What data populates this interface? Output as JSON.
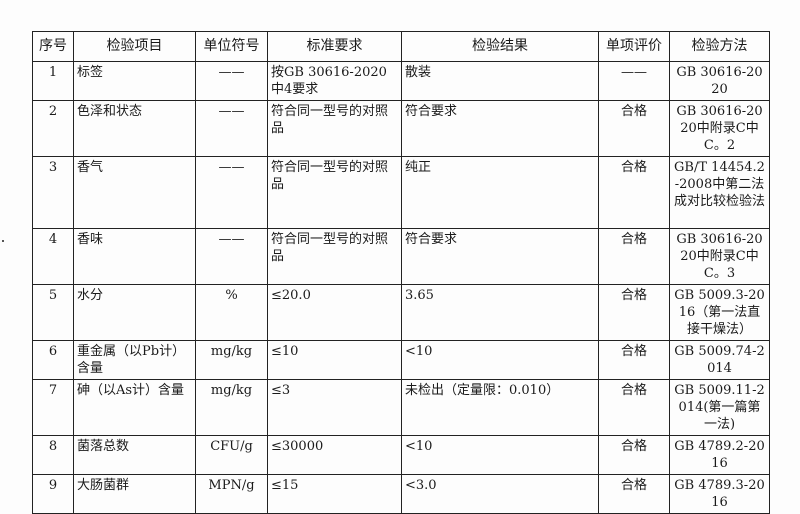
{
  "headers": [
    "序号",
    "检验项目",
    "单位符号",
    "标准要求",
    "检验结果",
    "单项评价",
    "检验方法"
  ],
  "rows": [
    {
      "no": "1",
      "item": "标签",
      "unit": "——",
      "requirement": "按GB 30616-2020中4要求",
      "result": "散装",
      "evaluation": "——",
      "method": "GB 30616-2020"
    },
    {
      "no": "2",
      "item": "色泽和状态",
      "unit": "——",
      "requirement": "符合同一型号的对照品",
      "result": "符合要求",
      "evaluation": "合格",
      "method": "GB 30616-2020中附录C中C。2"
    },
    {
      "no": "3",
      "item": "香气",
      "unit": "——",
      "requirement": "符合同一型号的对照品",
      "result": "纯正",
      "evaluation": "合格",
      "method": "GB/T 14454.2-2008中第二法成对比较检验法"
    },
    {
      "no": "4",
      "item": "香味",
      "unit": "——",
      "requirement": "符合同一型号的对照品",
      "result": "符合要求",
      "evaluation": "合格",
      "method": "GB 30616-2020中附录C中C。3"
    },
    {
      "no": "5",
      "item": "水分",
      "unit": "%",
      "requirement": "≤20.0",
      "result": "3.65",
      "evaluation": "合格",
      "method": "GB 5009.3-2016（第一法直接干燥法）"
    },
    {
      "no": "6",
      "item": "重金属（以Pb计）含量",
      "unit": "mg/kg",
      "requirement": "≤10",
      "result": "<10",
      "evaluation": "合格",
      "method": "GB 5009.74-2014"
    },
    {
      "no": "7",
      "item": "砷（以As计）含量",
      "unit": "mg/kg",
      "requirement": "≤3",
      "result": "未检出（定量限：0.010）",
      "evaluation": "合格",
      "method": "GB 5009.11-2014(第一篇第一法)"
    },
    {
      "no": "8",
      "item": "菌落总数",
      "unit": "CFU/g",
      "requirement": "≤30000",
      "result": "<10",
      "evaluation": "合格",
      "method": "GB 4789.2-2016"
    },
    {
      "no": "9",
      "item": "大肠菌群",
      "unit": "MPN/g",
      "requirement": "≤15",
      "result": "<3.0",
      "evaluation": "合格",
      "method": "GB 4789.3-2016"
    }
  ]
}
